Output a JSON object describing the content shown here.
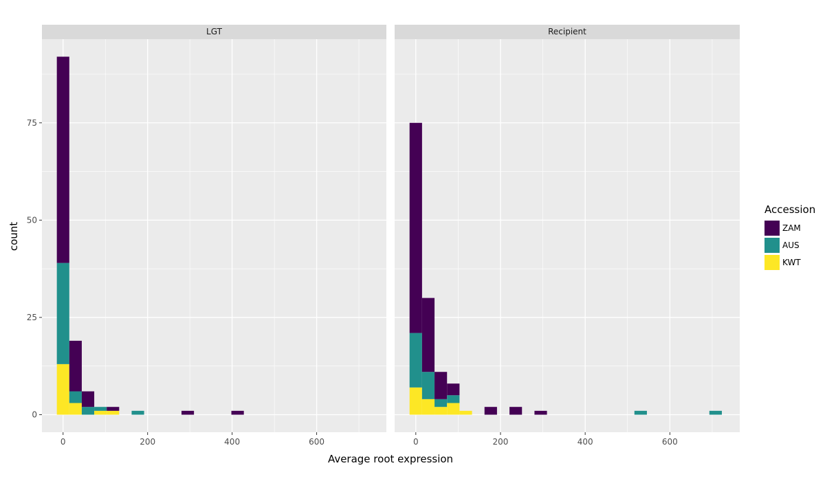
{
  "chart_data": {
    "type": "bar",
    "subtype": "faceted-stacked-histogram",
    "xlabel": "Average root expression",
    "ylabel": "count",
    "xlim": [
      -50,
      765
    ],
    "ylim": [
      -4.5,
      96.5
    ],
    "x_ticks": [
      0,
      200,
      400,
      600
    ],
    "y_ticks": [
      0,
      25,
      50,
      75
    ],
    "grid": true,
    "bin_width": 29.5,
    "legend": {
      "title": "Accession",
      "position": "right",
      "entries": [
        {
          "name": "ZAM",
          "color": "#440154"
        },
        {
          "name": "AUS",
          "color": "#21908C"
        },
        {
          "name": "KWT",
          "color": "#FDE725"
        }
      ]
    },
    "facets": [
      {
        "label": "LGT",
        "bins": [
          {
            "x0": -14.75,
            "x1": 14.75,
            "KWT": 13,
            "AUS": 26,
            "ZAM": 53
          },
          {
            "x0": 14.75,
            "x1": 44.25,
            "KWT": 3,
            "AUS": 3,
            "ZAM": 13
          },
          {
            "x0": 44.25,
            "x1": 73.75,
            "KWT": 0,
            "AUS": 2,
            "ZAM": 4
          },
          {
            "x0": 73.75,
            "x1": 103.25,
            "KWT": 1,
            "AUS": 1,
            "ZAM": 0
          },
          {
            "x0": 103.25,
            "x1": 132.75,
            "KWT": 1,
            "AUS": 0,
            "ZAM": 1
          },
          {
            "x0": 162.25,
            "x1": 191.75,
            "KWT": 0,
            "AUS": 1,
            "ZAM": 0
          },
          {
            "x0": 280.25,
            "x1": 309.75,
            "KWT": 0,
            "AUS": 0,
            "ZAM": 1
          },
          {
            "x0": 398.25,
            "x1": 427.75,
            "KWT": 0,
            "AUS": 0,
            "ZAM": 1
          }
        ]
      },
      {
        "label": "Recipient",
        "bins": [
          {
            "x0": -14.75,
            "x1": 14.75,
            "KWT": 7,
            "AUS": 14,
            "ZAM": 54
          },
          {
            "x0": 14.75,
            "x1": 44.25,
            "KWT": 4,
            "AUS": 7,
            "ZAM": 19
          },
          {
            "x0": 44.25,
            "x1": 73.75,
            "KWT": 2,
            "AUS": 2,
            "ZAM": 7
          },
          {
            "x0": 73.75,
            "x1": 103.25,
            "KWT": 3,
            "AUS": 2,
            "ZAM": 3
          },
          {
            "x0": 103.25,
            "x1": 132.75,
            "KWT": 1,
            "AUS": 0,
            "ZAM": 0
          },
          {
            "x0": 162.25,
            "x1": 191.75,
            "KWT": 0,
            "AUS": 0,
            "ZAM": 2
          },
          {
            "x0": 221.25,
            "x1": 250.75,
            "KWT": 0,
            "AUS": 0,
            "ZAM": 2
          },
          {
            "x0": 280.25,
            "x1": 309.75,
            "KWT": 0,
            "AUS": 0,
            "ZAM": 1
          },
          {
            "x0": 516.25,
            "x1": 545.75,
            "KWT": 0,
            "AUS": 1,
            "ZAM": 0
          },
          {
            "x0": 693.25,
            "x1": 722.75,
            "KWT": 0,
            "AUS": 1,
            "ZAM": 0
          }
        ]
      }
    ]
  }
}
